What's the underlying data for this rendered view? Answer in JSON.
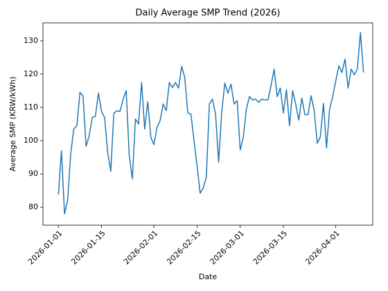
{
  "chart_data": {
    "type": "line",
    "title": "Daily Average SMP Trend (2026)",
    "xlabel": "Date",
    "ylabel": "Average SMP (KRW/kWh)",
    "x": [
      "2026-01-01",
      "2026-01-02",
      "2026-01-03",
      "2026-01-04",
      "2026-01-05",
      "2026-01-06",
      "2026-01-07",
      "2026-01-08",
      "2026-01-09",
      "2026-01-10",
      "2026-01-11",
      "2026-01-12",
      "2026-01-13",
      "2026-01-14",
      "2026-01-15",
      "2026-01-16",
      "2026-01-17",
      "2026-01-18",
      "2026-01-19",
      "2026-01-20",
      "2026-01-21",
      "2026-01-22",
      "2026-01-23",
      "2026-01-24",
      "2026-01-25",
      "2026-01-26",
      "2026-01-27",
      "2026-01-28",
      "2026-01-29",
      "2026-01-30",
      "2026-01-31",
      "2026-02-01",
      "2026-02-02",
      "2026-02-03",
      "2026-02-04",
      "2026-02-05",
      "2026-02-06",
      "2026-02-07",
      "2026-02-08",
      "2026-02-09",
      "2026-02-10",
      "2026-02-11",
      "2026-02-12",
      "2026-02-13",
      "2026-02-14",
      "2026-02-15",
      "2026-02-16",
      "2026-02-17",
      "2026-02-18",
      "2026-02-19",
      "2026-02-20",
      "2026-02-21",
      "2026-02-22",
      "2026-02-23",
      "2026-02-24",
      "2026-02-25",
      "2026-02-26",
      "2026-02-27",
      "2026-02-28",
      "2026-03-01",
      "2026-03-02",
      "2026-03-03",
      "2026-03-04",
      "2026-03-05",
      "2026-03-06",
      "2026-03-07",
      "2026-03-08",
      "2026-03-09",
      "2026-03-10",
      "2026-03-11",
      "2026-03-12",
      "2026-03-13",
      "2026-03-14",
      "2026-03-15",
      "2026-03-16",
      "2026-03-17",
      "2026-03-18",
      "2026-03-19",
      "2026-03-20",
      "2026-03-21",
      "2026-03-22",
      "2026-03-23",
      "2026-03-24",
      "2026-03-25",
      "2026-03-26",
      "2026-03-27",
      "2026-03-28",
      "2026-03-29",
      "2026-03-30",
      "2026-03-31",
      "2026-04-01",
      "2026-04-02",
      "2026-04-03",
      "2026-04-04",
      "2026-04-05",
      "2026-04-06",
      "2026-04-07",
      "2026-04-08",
      "2026-04-09",
      "2026-04-10"
    ],
    "series": [
      {
        "name": "Average SMP",
        "color": "#1f77b4",
        "values": [
          83.8,
          97,
          78,
          82,
          96,
          103.5,
          104.5,
          114.5,
          113.5,
          98.3,
          101.5,
          107,
          107.3,
          114.3,
          108.8,
          107,
          96.5,
          90.8,
          108.2,
          109,
          108.8,
          112.5,
          115,
          95.5,
          88.5,
          106.5,
          105,
          117.5,
          103.5,
          111.7,
          101,
          98.8,
          104,
          106,
          111,
          109,
          117.5,
          116,
          117.5,
          115.8,
          122.3,
          119,
          108.3,
          108,
          100,
          92.5,
          84.2,
          85.8,
          89,
          111,
          112.5,
          108,
          93.5,
          108.5,
          117.3,
          114.3,
          117,
          111,
          112,
          97.2,
          101,
          109.5,
          113.3,
          112.2,
          112.5,
          111.5,
          112.5,
          112.2,
          112.3,
          116.5,
          121.5,
          113.2,
          115.8,
          108.3,
          115.3,
          104.5,
          115,
          111,
          106.2,
          112.8,
          107.8,
          107.8,
          113.5,
          109,
          99.2,
          101.2,
          111.2,
          97.8,
          109.5,
          113.2,
          118,
          122.5,
          120.5,
          124.5,
          115.8,
          121.5,
          119.8,
          121.5,
          132.5,
          120.5
        ]
      }
    ],
    "xlim": [
      "2025-12-27",
      "2026-04-13"
    ],
    "xticks": [
      "2026-01-01",
      "2026-01-15",
      "2026-02-01",
      "2026-02-15",
      "2026-03-01",
      "2026-03-15",
      "2026-04-01"
    ],
    "ylim": [
      74.6,
      135.4
    ],
    "yticks": [
      80,
      90,
      100,
      110,
      120,
      130
    ],
    "grid": false
  }
}
